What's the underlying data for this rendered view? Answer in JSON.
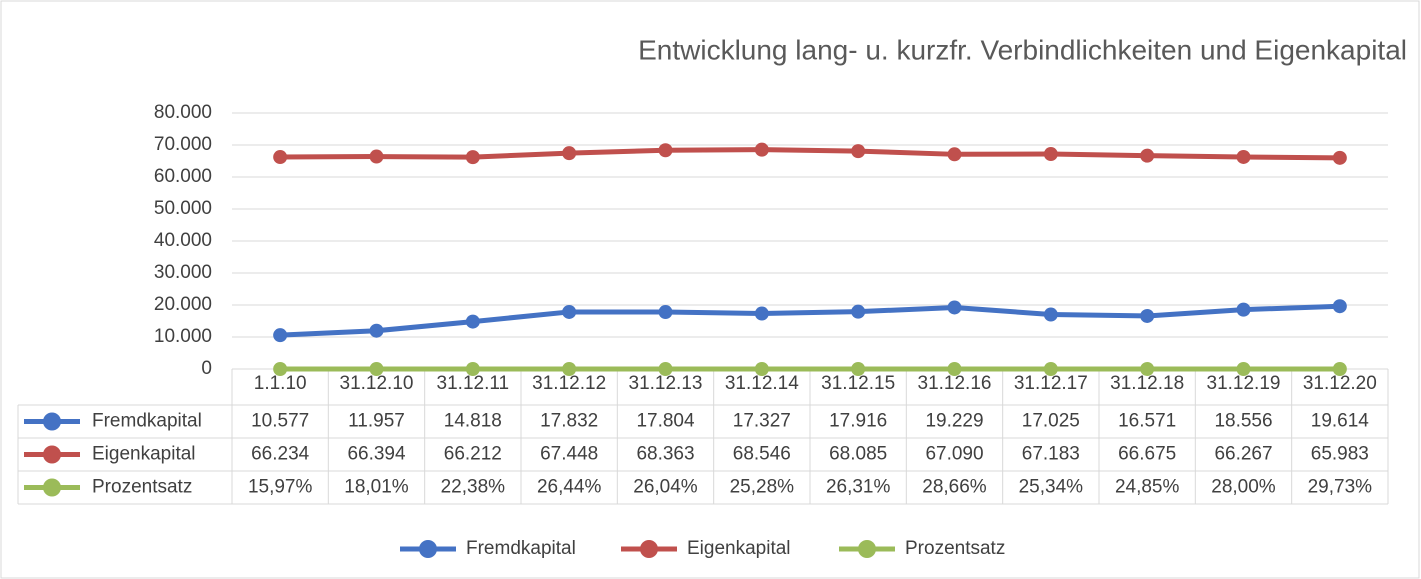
{
  "chart_data": {
    "type": "line",
    "title": "Entwicklung lang- u. kurzfr. Verbindlichkeiten und Eigenkapital",
    "categories": [
      "1.1.10",
      "31.12.10",
      "31.12.11",
      "31.12.12",
      "31.12.13",
      "31.12.14",
      "31.12.15",
      "31.12.16",
      "31.12.17",
      "31.12.18",
      "31.12.19",
      "31.12.20"
    ],
    "series": [
      {
        "name": "Fremdkapital",
        "color": "#4472c4",
        "values": [
          10577,
          11957,
          14818,
          17832,
          17804,
          17327,
          17916,
          19229,
          17025,
          16571,
          18556,
          19614
        ],
        "value_labels": [
          "10.577",
          "11.957",
          "14.818",
          "17.832",
          "17.804",
          "17.327",
          "17.916",
          "19.229",
          "17.025",
          "16.571",
          "18.556",
          "19.614"
        ]
      },
      {
        "name": "Eigenkapital",
        "color": "#c0504d",
        "values": [
          66234,
          66394,
          66212,
          67448,
          68363,
          68546,
          68085,
          67090,
          67183,
          66675,
          66267,
          65983
        ],
        "value_labels": [
          "66.234",
          "66.394",
          "66.212",
          "67.448",
          "68.363",
          "68.546",
          "68.085",
          "67.090",
          "67.183",
          "66.675",
          "66.267",
          "65.983"
        ]
      },
      {
        "name": "Prozentsatz",
        "color": "#9bbb59",
        "values": [
          0.1597,
          0.1801,
          0.2238,
          0.2644,
          0.2604,
          0.2528,
          0.2631,
          0.2866,
          0.2534,
          0.2485,
          0.28,
          0.2973
        ],
        "value_labels": [
          "15,97%",
          "18,01%",
          "22,38%",
          "26,44%",
          "26,04%",
          "25,28%",
          "26,31%",
          "28,66%",
          "25,34%",
          "24,85%",
          "28,00%",
          "29,73%"
        ]
      }
    ],
    "ylim": [
      0,
      80000
    ],
    "yticks": [
      0,
      {
        "value": 10000,
        "label": "10.000"
      },
      {
        "value": 20000,
        "label": "20.000"
      },
      {
        "value": 30000,
        "label": "30.000"
      },
      {
        "value": 40000,
        "label": "40.000"
      },
      {
        "value": 50000,
        "label": "50.000"
      },
      {
        "value": 60000,
        "label": "60.000"
      },
      {
        "value": 70000,
        "label": "70.000"
      },
      {
        "value": 80000,
        "label": "80.000"
      }
    ],
    "grid": true,
    "legend": "bottom"
  }
}
